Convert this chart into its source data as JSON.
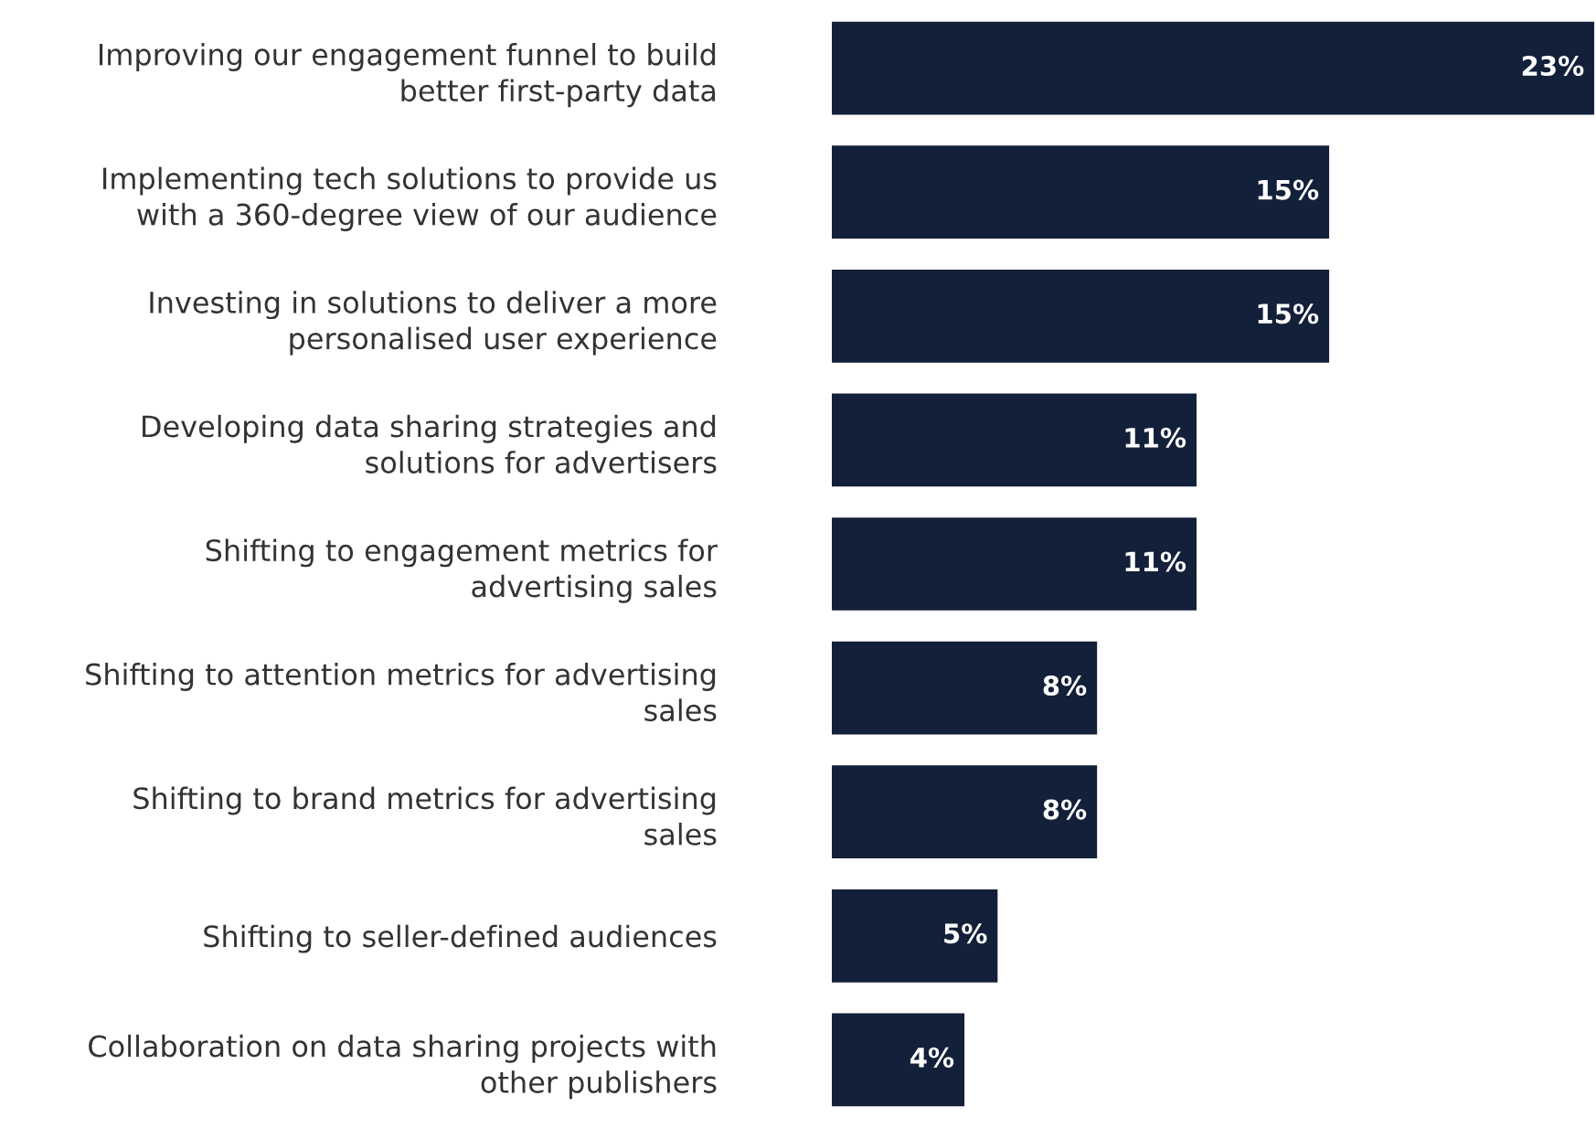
{
  "chart_data": {
    "type": "bar",
    "orientation": "horizontal",
    "categories": [
      "Improving our engagement funnel to build\nbetter first-party data",
      "Implementing tech solutions to provide us\nwith a 360-degree view of our audience",
      "Investing in solutions to deliver a more\npersonalised user experience",
      "Developing data sharing strategies and\nsolutions for advertisers",
      "Shifting to engagement metrics for\nadvertising sales",
      "Shifting to attention metrics for advertising\nsales",
      "Shifting to brand metrics for advertising\nsales",
      "Shifting to seller-defined audiences",
      "Collaboration on data sharing projects with\nother publishers"
    ],
    "values": [
      23,
      15,
      15,
      11,
      11,
      8,
      8,
      5,
      4
    ],
    "value_labels": [
      "23%",
      "15%",
      "15%",
      "11%",
      "11%",
      "8%",
      "8%",
      "5%",
      "4%"
    ],
    "color": "#13203a",
    "xlim": [
      0,
      23
    ],
    "grid": false,
    "legend": false,
    "tick_labels": "y"
  }
}
